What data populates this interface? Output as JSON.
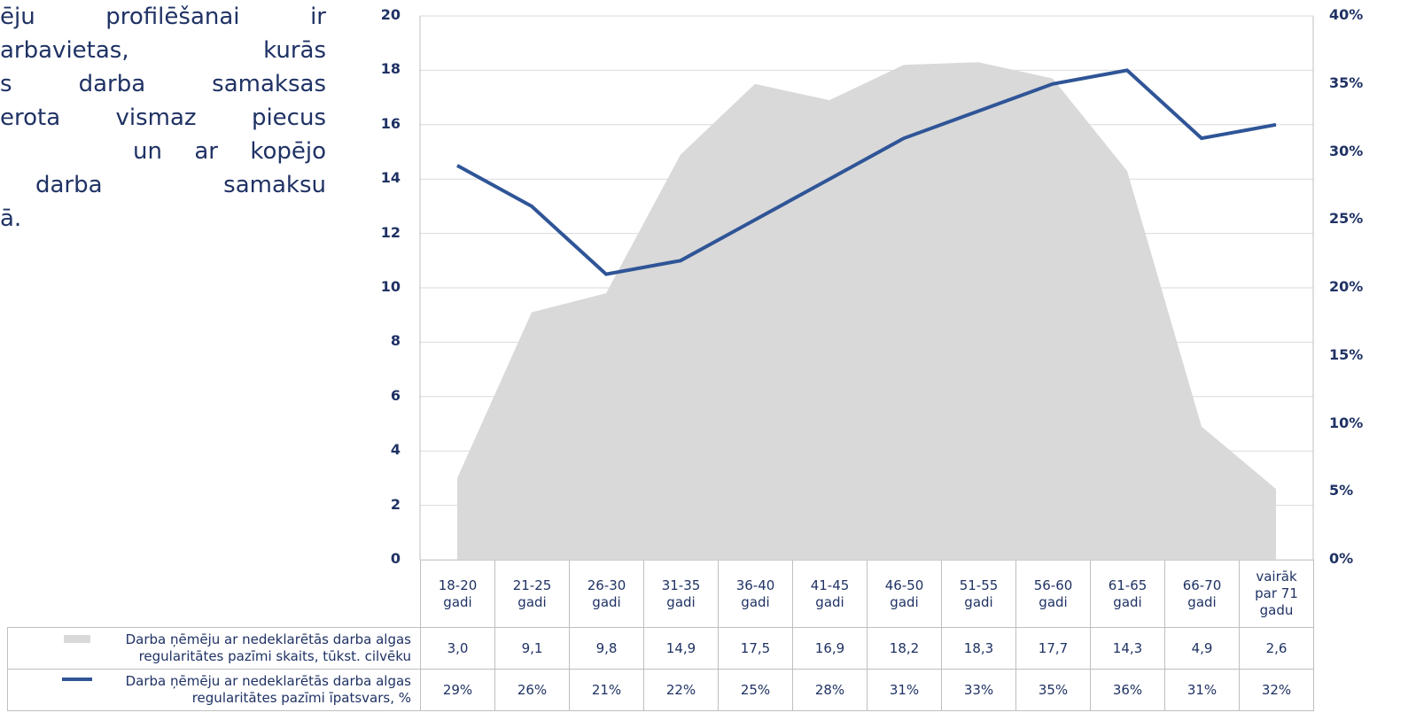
{
  "text_block": {
    "lines": [
      "ēju profilēšanai ir",
      "arbavietas, kurās",
      "s darba samaksas",
      "erota vismaz piecus",
      "un ar kopējo",
      "darba samaksu",
      "ā."
    ]
  },
  "chart_data": {
    "type": "area",
    "categories": [
      "18-20 gadi",
      "21-25 gadi",
      "26-30 gadi",
      "31-35 gadi",
      "36-40 gadi",
      "41-45 gadi",
      "46-50 gadi",
      "51-55 gadi",
      "56-60 gadi",
      "61-65 gadi",
      "66-70 gadi",
      "vairāk par 71 gadu"
    ],
    "series": [
      {
        "name": "Darba ņēmēju ar nedeklarētās darba algas regularitātes pazīmi skaits, tūkst. cilvēku",
        "type": "area",
        "color": "#d9d9d9",
        "values": [
          3.0,
          9.1,
          9.8,
          14.9,
          17.5,
          16.9,
          18.2,
          18.3,
          17.7,
          14.3,
          4.9,
          2.6
        ],
        "value_labels": [
          "3,0",
          "9,1",
          "9,8",
          "14,9",
          "17,5",
          "16,9",
          "18,2",
          "18,3",
          "17,7",
          "14,3",
          "4,9",
          "2,6"
        ]
      },
      {
        "name": "Darba ņēmēju ar nedeklarētās darba algas regularitātes pazīmi īpatsvars, %",
        "type": "line",
        "axis": "y2",
        "color": "#2f5597",
        "values": [
          29,
          26,
          21,
          22,
          25,
          28,
          31,
          33,
          35,
          36,
          31,
          32
        ],
        "value_labels": [
          "29%",
          "26%",
          "21%",
          "22%",
          "25%",
          "28%",
          "31%",
          "33%",
          "35%",
          "36%",
          "31%",
          "32%"
        ]
      }
    ],
    "ylim": [
      0,
      20
    ],
    "yticks": [
      0,
      2,
      4,
      6,
      8,
      10,
      12,
      14,
      16,
      18,
      20
    ],
    "y2lim": [
      0,
      40
    ],
    "y2ticks": [
      {
        "value": 0,
        "label": "0%"
      },
      {
        "value": 5,
        "label": "5%"
      },
      {
        "value": 10,
        "label": "10%"
      },
      {
        "value": 15,
        "label": "15%"
      },
      {
        "value": 20,
        "label": "20%"
      },
      {
        "value": 25,
        "label": "25%"
      },
      {
        "value": 30,
        "label": "30%"
      },
      {
        "value": 35,
        "label": "35%"
      },
      {
        "value": 40,
        "label": "40%"
      }
    ],
    "grid": true
  }
}
